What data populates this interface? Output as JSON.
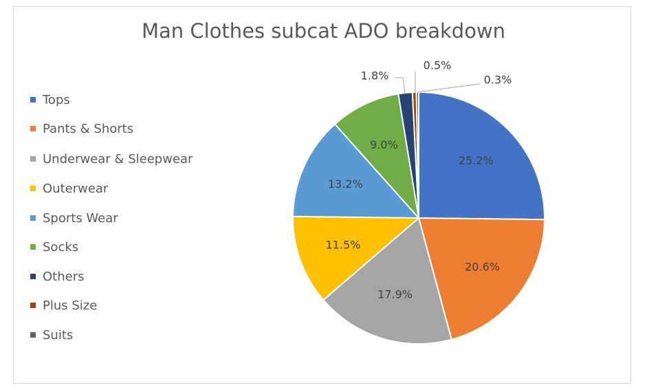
{
  "chart_data": {
    "type": "pie",
    "title": "Man Clothes subcat ADO breakdown",
    "legend_position": "left",
    "slices": [
      {
        "name": "Tops",
        "value": 25.2,
        "label": "25.2%",
        "color": "#4472c4"
      },
      {
        "name": "Pants & Shorts",
        "value": 20.6,
        "label": "20.6%",
        "color": "#ed7d31"
      },
      {
        "name": "Underwear & Sleepwear",
        "value": 17.9,
        "label": "17.9%",
        "color": "#a5a5a5"
      },
      {
        "name": "Outerwear",
        "value": 11.5,
        "label": "11.5%",
        "color": "#ffc000"
      },
      {
        "name": "Sports Wear",
        "value": 13.2,
        "label": "13.2%",
        "color": "#5b9bd5"
      },
      {
        "name": "Socks",
        "value": 9.0,
        "label": "9.0%",
        "color": "#70ad47"
      },
      {
        "name": "Others",
        "value": 1.8,
        "label": "1.8%",
        "color": "#264478"
      },
      {
        "name": "Plus Size",
        "value": 0.5,
        "label": "0.5%",
        "color": "#9e480e"
      },
      {
        "name": "Suits",
        "value": 0.3,
        "label": "0.3%",
        "color": "#636363"
      }
    ]
  }
}
